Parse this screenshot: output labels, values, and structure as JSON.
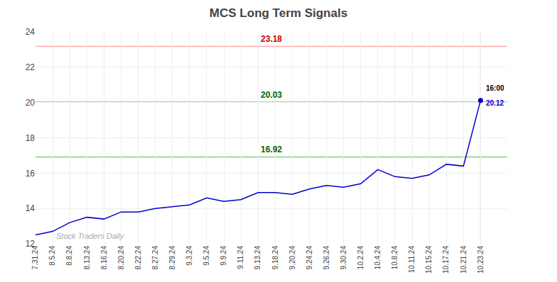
{
  "chart_data": {
    "type": "line",
    "title": "MCS Long Term Signals",
    "categories": [
      "7.31.24",
      "8.5.24",
      "8.8.24",
      "8.13.24",
      "8.16.24",
      "8.20.24",
      "8.22.24",
      "8.27.24",
      "8.29.24",
      "9.3.24",
      "9.5.24",
      "9.9.24",
      "9.11.24",
      "9.13.24",
      "9.18.24",
      "9.20.24",
      "9.24.24",
      "9.26.24",
      "9.30.24",
      "10.2.24",
      "10.4.24",
      "10.8.24",
      "10.11.24",
      "10.15.24",
      "10.17.24",
      "10.21.24",
      "10.23.24"
    ],
    "values": [
      12.5,
      12.7,
      13.2,
      13.5,
      13.4,
      13.8,
      13.8,
      14.0,
      14.1,
      14.2,
      14.6,
      14.4,
      14.5,
      14.9,
      14.9,
      14.8,
      15.1,
      15.3,
      15.2,
      15.4,
      16.2,
      15.8,
      15.7,
      15.9,
      16.5,
      16.4,
      20.12
    ],
    "color": "#0000cc",
    "ylim": [
      12,
      24
    ],
    "yticks": [
      12,
      14,
      16,
      18,
      20,
      22,
      24
    ],
    "grid": true,
    "hlines": [
      {
        "value": 23.18,
        "label": "23.18",
        "color": "#ffaaaa",
        "label_color": "#cc0000"
      },
      {
        "value": 20.03,
        "label": "20.03",
        "color": "#88cc88",
        "label_color": "#006600"
      },
      {
        "value": 16.92,
        "label": "16.92",
        "color": "#88cc88",
        "label_color": "#006600"
      }
    ],
    "last_point": {
      "time_label": "16:00",
      "value_label": "20.12",
      "color": "#0000cc"
    },
    "watermark": "Stock Traders Daily"
  }
}
